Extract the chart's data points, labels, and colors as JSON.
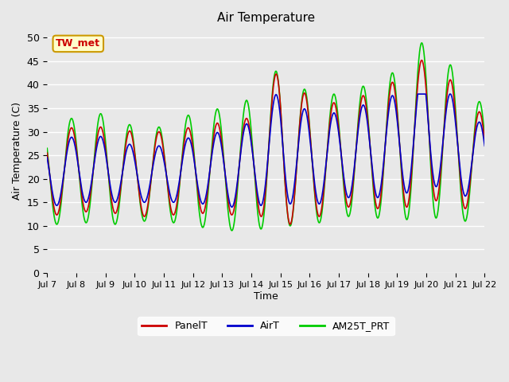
{
  "title": "Air Temperature",
  "xlabel": "Time",
  "ylabel": "Air Temperature (C)",
  "ylim": [
    0,
    52
  ],
  "yticks": [
    0,
    5,
    10,
    15,
    20,
    25,
    30,
    35,
    40,
    45,
    50
  ],
  "bg_color": "#e8e8e8",
  "plot_bg_color": "#e8e8e8",
  "grid_color": "white",
  "annotation_text": "TW_met",
  "annotation_bg": "#ffffcc",
  "annotation_border": "#cc9900",
  "annotation_text_color": "#cc0000",
  "series": {
    "PanelT": {
      "color": "#cc0000",
      "lw": 1.2
    },
    "AirT": {
      "color": "#0000cc",
      "lw": 1.2
    },
    "AM25T_PRT": {
      "color": "#00cc00",
      "lw": 1.2
    }
  },
  "xtick_labels": [
    "Jul 7",
    "Jul 8",
    "Jul 9",
    "Jul 10",
    "Jul 11",
    "Jul 12",
    "Jul 13",
    "Jul 14",
    "Jul 15",
    "Jul 16",
    "Jul 17",
    "Jul 18",
    "Jul 19",
    "Jul 20",
    "Jul 21",
    "Jul 22"
  ],
  "num_days": 15,
  "pts_per_day": 96
}
